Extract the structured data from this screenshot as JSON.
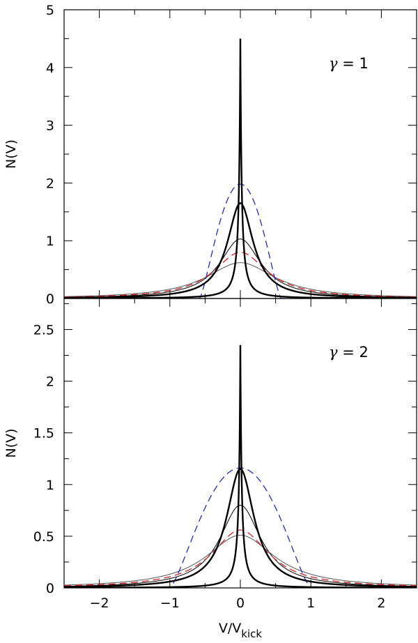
{
  "chart_data": [
    {
      "type": "line",
      "annotation": {
        "symbol": "γ",
        "text": " = 1"
      },
      "xlabel": "",
      "ylabel": "N(V)",
      "xlim": [
        -2.5,
        2.5
      ],
      "ylim": [
        0,
        5
      ],
      "xticks": [
        -2,
        -1,
        0,
        1,
        2
      ],
      "yticks": [
        0,
        1,
        2,
        3,
        4,
        5
      ],
      "ytick_labels": [
        "0",
        "1",
        "2",
        "3",
        "4",
        "5"
      ],
      "grid": false,
      "series": [
        {
          "style": "thick",
          "color": "#000000",
          "kind": "cusp",
          "peak": 4.5,
          "width": 0.24
        },
        {
          "style": "thick",
          "color": "#000000",
          "kind": "lorentz",
          "peak": 1.65,
          "width": 0.28
        },
        {
          "style": "thin",
          "color": "#000000",
          "kind": "lorentz",
          "peak": 1.03,
          "width": 0.45
        },
        {
          "style": "thin",
          "color": "#555555",
          "kind": "lorentz",
          "peak": 0.62,
          "width": 0.75
        },
        {
          "style": "dashed",
          "color": "#1f2fb5",
          "kind": "compact",
          "peak": 1.98,
          "width": 0.58
        },
        {
          "style": "dashed",
          "color": "#d32020",
          "kind": "lorentz",
          "peak": 0.8,
          "width": 0.58
        }
      ]
    },
    {
      "type": "line",
      "annotation": {
        "symbol": "γ",
        "text": " = 2"
      },
      "xlabel": "V/V",
      "xlabel_sub": "kick",
      "ylabel": "N(V)",
      "xlim": [
        -2.5,
        2.5
      ],
      "ylim": [
        0,
        2.8
      ],
      "xticks": [
        -2,
        -1,
        0,
        1,
        2
      ],
      "xtick_labels": [
        "−2",
        "−1",
        "0",
        "1",
        "2"
      ],
      "yticks": [
        0,
        0.5,
        1,
        1.5,
        2,
        2.5
      ],
      "ytick_labels": [
        "0",
        "0.5",
        "1",
        "1.5",
        "2",
        "2.5"
      ],
      "grid": false,
      "series": [
        {
          "style": "thick",
          "color": "#000000",
          "kind": "cusp",
          "peak": 2.35,
          "width": 0.24
        },
        {
          "style": "thick",
          "color": "#000000",
          "kind": "lorentz",
          "peak": 1.15,
          "width": 0.3
        },
        {
          "style": "thin",
          "color": "#000000",
          "kind": "lorentz",
          "peak": 0.8,
          "width": 0.45
        },
        {
          "style": "thin",
          "color": "#555555",
          "kind": "lorentz",
          "peak": 0.51,
          "width": 0.75
        },
        {
          "style": "dashed",
          "color": "#1f2fb5",
          "kind": "compact",
          "peak": 1.16,
          "width": 1.0
        },
        {
          "style": "dashed",
          "color": "#d32020",
          "kind": "lorentz",
          "peak": 0.56,
          "width": 0.62
        }
      ]
    }
  ]
}
